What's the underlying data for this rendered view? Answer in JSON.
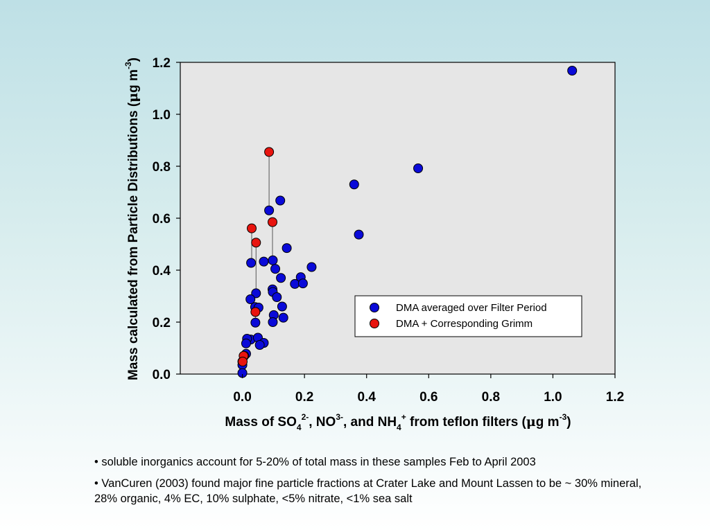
{
  "colors": {
    "plot_background": "#e6e6e6",
    "series_filter": "#0a0ad8",
    "series_grimm": "#e8140f"
  },
  "chart_data": {
    "type": "scatter",
    "xlabel": {
      "p1": "Mass of SO",
      "sub1": "4",
      "sup1": "2-",
      "p2": ", NO",
      "sup2": "3-",
      "p3": ", and NH",
      "sub3": "4",
      "sup3": "+",
      "p4": " from teflon filters (",
      "mu": "μ",
      "p5": "g m",
      "sup5": "-3",
      "p6": ")"
    },
    "ylabel": {
      "p1": "Mass calculated from Particle Distributions (",
      "mu": "μ",
      "p2": "g m",
      "sup": "-3",
      "p3": ")"
    },
    "xlim": [
      -0.2,
      1.2
    ],
    "ylim": [
      0.0,
      1.2
    ],
    "xticks": [
      "0.0",
      "0.2",
      "0.4",
      "0.6",
      "0.8",
      "1.0",
      "1.2"
    ],
    "yticks": [
      "0.0",
      "0.2",
      "0.4",
      "0.6",
      "0.8",
      "1.0",
      "1.2"
    ],
    "legend_position": "lower-right",
    "series": [
      {
        "name": "DMA averaged over Filter Period",
        "color": "#0a0ad8",
        "points": [
          [
            1.062,
            1.168
          ],
          [
            0.566,
            0.792
          ],
          [
            0.36,
            0.73
          ],
          [
            0.375,
            0.537
          ],
          [
            0.122,
            0.668
          ],
          [
            0.086,
            0.63
          ],
          [
            0.143,
            0.485
          ],
          [
            0.028,
            0.428
          ],
          [
            0.069,
            0.433
          ],
          [
            0.098,
            0.438
          ],
          [
            0.106,
            0.405
          ],
          [
            0.223,
            0.412
          ],
          [
            0.188,
            0.373
          ],
          [
            0.169,
            0.347
          ],
          [
            0.195,
            0.349
          ],
          [
            0.124,
            0.37
          ],
          [
            0.097,
            0.326
          ],
          [
            0.098,
            0.316
          ],
          [
            0.111,
            0.296
          ],
          [
            0.044,
            0.311
          ],
          [
            0.026,
            0.288
          ],
          [
            0.041,
            0.258
          ],
          [
            0.052,
            0.256
          ],
          [
            0.128,
            0.26
          ],
          [
            0.101,
            0.227
          ],
          [
            0.132,
            0.217
          ],
          [
            0.098,
            0.2
          ],
          [
            0.042,
            0.198
          ],
          [
            0.027,
            0.133
          ],
          [
            0.05,
            0.14
          ],
          [
            0.015,
            0.136
          ],
          [
            0.069,
            0.12
          ],
          [
            0.056,
            0.112
          ],
          [
            0.012,
            0.118
          ],
          [
            0.012,
            0.078
          ],
          [
            0.006,
            0.07
          ],
          [
            0.0,
            0.048
          ],
          [
            0.0,
            0.035
          ],
          [
            0.0,
            0.004
          ]
        ]
      },
      {
        "name": "DMA + Corresponding Grimm",
        "color": "#e8140f",
        "points": [
          [
            0.086,
            0.855
          ],
          [
            0.03,
            0.561
          ],
          [
            0.097,
            0.585
          ],
          [
            0.044,
            0.506
          ],
          [
            0.042,
            0.239
          ],
          [
            0.004,
            0.07
          ],
          [
            0.001,
            0.048
          ]
        ]
      }
    ],
    "connectors": [
      [
        [
          0.086,
          0.855
        ],
        [
          0.086,
          0.63
        ]
      ],
      [
        [
          0.03,
          0.561
        ],
        [
          0.03,
          0.428
        ]
      ],
      [
        [
          0.097,
          0.585
        ],
        [
          0.097,
          0.438
        ]
      ],
      [
        [
          0.044,
          0.506
        ],
        [
          0.044,
          0.311
        ]
      ],
      [
        [
          0.042,
          0.239
        ],
        [
          0.042,
          0.198
        ]
      ]
    ]
  },
  "bullets": [
    "• soluble inorganics account for 5-20% of total mass in these samples Feb to April 2003",
    "•  VanCuren (2003) found major fine particle fractions at Crater Lake and Mount Lassen to be ~ 30% mineral, 28% organic, 4% EC, 10% sulphate, <5% nitrate, <1% sea salt"
  ]
}
